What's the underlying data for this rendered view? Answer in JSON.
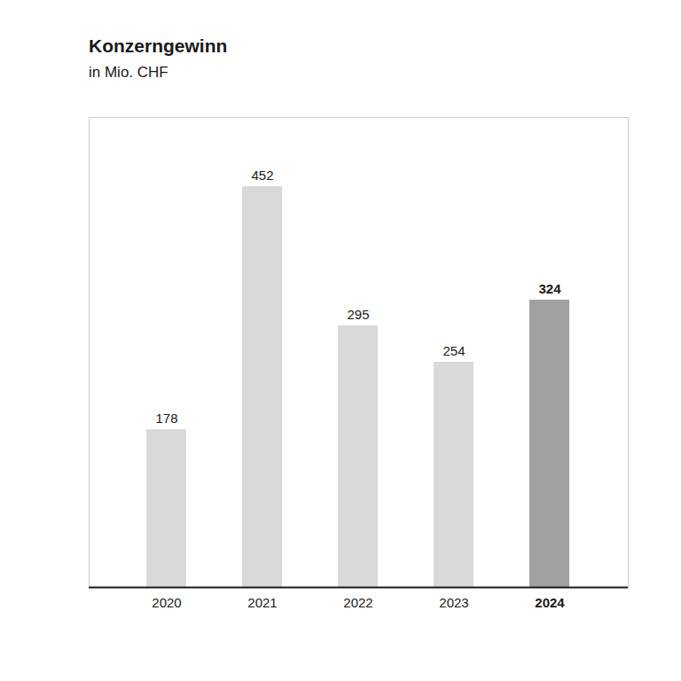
{
  "chart_data": {
    "type": "bar",
    "title": "Konzerngewinn",
    "subtitle": "in Mio. CHF",
    "categories": [
      "2020",
      "2021",
      "2022",
      "2023",
      "2024"
    ],
    "values": [
      178,
      452,
      295,
      254,
      324
    ],
    "colors": [
      "#d9d9d9",
      "#d9d9d9",
      "#d9d9d9",
      "#d9d9d9",
      "#a0a0a0"
    ],
    "ylim": [
      0,
      530
    ],
    "grid": false,
    "data_labels": true,
    "tick_labels": "x"
  }
}
